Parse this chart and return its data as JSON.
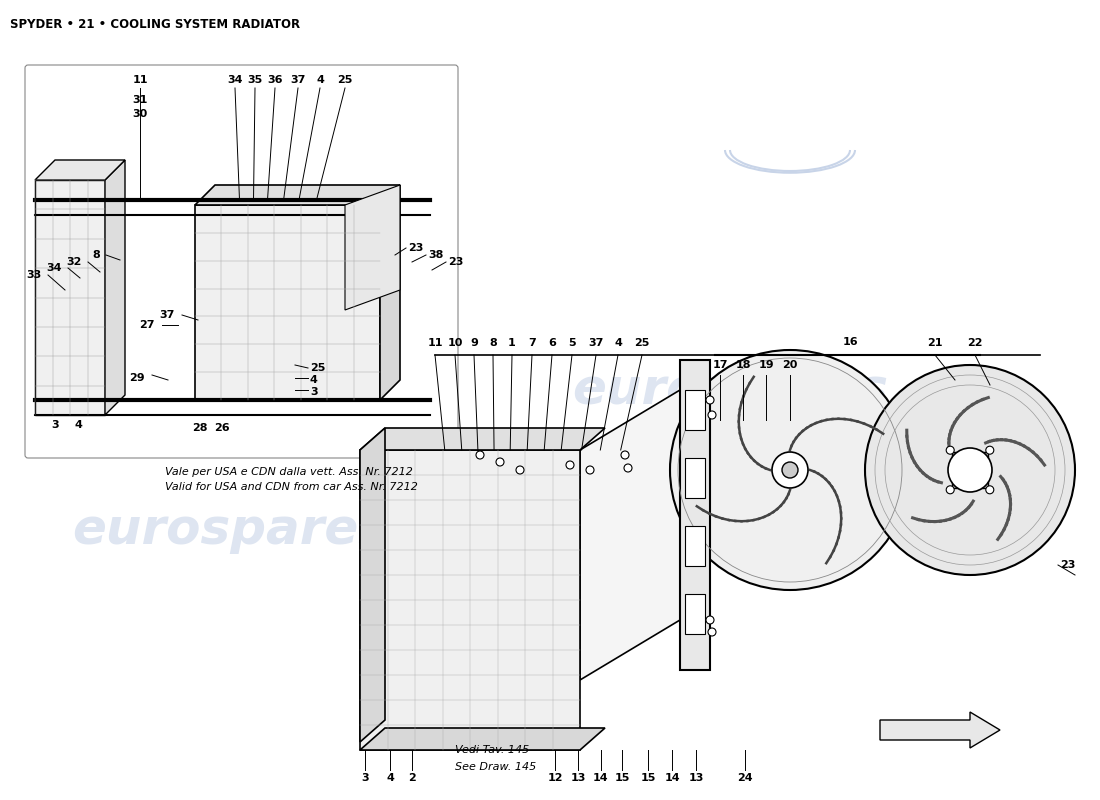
{
  "title": "SPYDER • 21 • COOLING SYSTEM RADIATOR",
  "bg": "#ffffff",
  "wm_color": "#c8d4e8",
  "wm_text": "eurospares",
  "inset_note1": "Vale per USA e CDN dalla vett. Ass. Nr. 7212",
  "inset_note2": "Valid for USA and CDN from car Ass. Nr. 7212",
  "vedi1": "Vedi Tav. 145",
  "vedi2": "See Draw. 145"
}
